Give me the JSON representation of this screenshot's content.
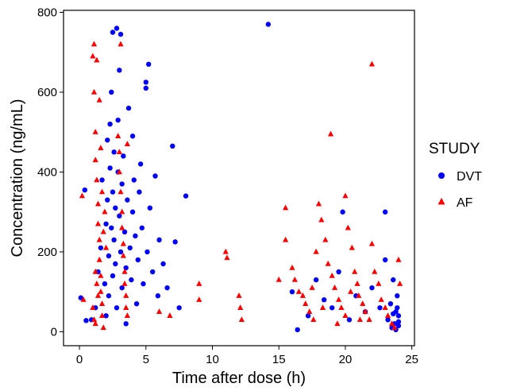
{
  "chart_data": {
    "type": "scatter",
    "xlabel": "Time after dose (h)",
    "ylabel": "Concentration (ng/mL)",
    "xlim": [
      -1.2,
      25.2
    ],
    "ylim": [
      -35,
      805
    ],
    "xticks": [
      0,
      5,
      10,
      15,
      20,
      25
    ],
    "yticks": [
      0,
      200,
      400,
      600,
      800
    ],
    "grid": false,
    "legend": {
      "title": "STUDY",
      "position": "right"
    },
    "series": [
      {
        "name": "DVT",
        "marker": "circle",
        "color": "#0000ff",
        "points": [
          [
            0.1,
            85
          ],
          [
            0.4,
            355
          ],
          [
            0.5,
            28
          ],
          [
            0.9,
            30
          ],
          [
            1.2,
            60
          ],
          [
            1.4,
            150
          ],
          [
            1.6,
            210
          ],
          [
            1.7,
            380
          ],
          [
            1.9,
            120
          ],
          [
            2.0,
            40
          ],
          [
            2.0,
            270
          ],
          [
            2.1,
            330
          ],
          [
            2.1,
            480
          ],
          [
            2.2,
            190
          ],
          [
            2.2,
            90
          ],
          [
            2.3,
            520
          ],
          [
            2.3,
            410
          ],
          [
            2.4,
            260
          ],
          [
            2.4,
            600
          ],
          [
            2.5,
            140
          ],
          [
            2.5,
            350
          ],
          [
            2.5,
            750
          ],
          [
            2.6,
            230
          ],
          [
            2.6,
            450
          ],
          [
            2.7,
            310
          ],
          [
            2.7,
            170
          ],
          [
            2.8,
            760
          ],
          [
            2.8,
            60
          ],
          [
            2.9,
            400
          ],
          [
            2.9,
            530
          ],
          [
            3.0,
            655
          ],
          [
            3.0,
            290
          ],
          [
            3.1,
            745
          ],
          [
            3.1,
            200
          ],
          [
            3.2,
            110
          ],
          [
            3.2,
            370
          ],
          [
            3.3,
            440
          ],
          [
            3.4,
            250
          ],
          [
            3.5,
            160
          ],
          [
            3.5,
            20
          ],
          [
            3.6,
            330
          ],
          [
            3.7,
            560
          ],
          [
            3.8,
            210
          ],
          [
            3.9,
            130
          ],
          [
            4.0,
            300
          ],
          [
            4.0,
            490
          ],
          [
            4.1,
            380
          ],
          [
            4.2,
            240
          ],
          [
            4.3,
            70
          ],
          [
            4.4,
            180
          ],
          [
            4.5,
            350
          ],
          [
            4.6,
            420
          ],
          [
            4.7,
            260
          ],
          [
            4.8,
            120
          ],
          [
            5.0,
            625
          ],
          [
            5.0,
            610
          ],
          [
            5.1,
            200
          ],
          [
            5.2,
            670
          ],
          [
            5.3,
            310
          ],
          [
            5.5,
            150
          ],
          [
            5.7,
            390
          ],
          [
            5.9,
            90
          ],
          [
            6.0,
            230
          ],
          [
            6.3,
            170
          ],
          [
            6.6,
            110
          ],
          [
            7.0,
            465
          ],
          [
            7.2,
            225
          ],
          [
            7.5,
            60
          ],
          [
            8.0,
            340
          ],
          [
            14.2,
            770
          ],
          [
            16.0,
            100
          ],
          [
            16.4,
            5
          ],
          [
            17.2,
            40
          ],
          [
            17.8,
            130
          ],
          [
            18.4,
            80
          ],
          [
            19.0,
            60
          ],
          [
            19.5,
            150
          ],
          [
            19.8,
            300
          ],
          [
            20.3,
            30
          ],
          [
            20.8,
            90
          ],
          [
            21.5,
            50
          ],
          [
            22.0,
            110
          ],
          [
            22.6,
            60
          ],
          [
            23.0,
            300
          ],
          [
            23.0,
            180
          ],
          [
            23.2,
            30
          ],
          [
            23.4,
            70
          ],
          [
            23.5,
            10
          ],
          [
            23.6,
            130
          ],
          [
            23.7,
            20
          ],
          [
            23.8,
            50
          ],
          [
            23.8,
            5
          ],
          [
            23.9,
            90
          ],
          [
            24.0,
            40
          ],
          [
            24.0,
            15
          ],
          [
            23.6,
            45
          ],
          [
            23.9,
            60
          ],
          [
            24.0,
            25
          ]
        ]
      },
      {
        "name": "AF",
        "marker": "triangle",
        "color": "#ff0000",
        "points": [
          [
            0.2,
            340
          ],
          [
            0.3,
            80
          ],
          [
            1.0,
            690
          ],
          [
            1.1,
            720
          ],
          [
            1.1,
            600
          ],
          [
            1.2,
            500
          ],
          [
            1.2,
            430
          ],
          [
            1.3,
            680
          ],
          [
            1.3,
            380
          ],
          [
            1.4,
            320
          ],
          [
            1.4,
            270
          ],
          [
            1.5,
            230
          ],
          [
            1.5,
            180
          ],
          [
            1.5,
            580
          ],
          [
            1.6,
            140
          ],
          [
            1.6,
            100
          ],
          [
            1.7,
            70
          ],
          [
            1.7,
            40
          ],
          [
            1.8,
            10
          ],
          [
            1.8,
            250
          ],
          [
            1.9,
            300
          ],
          [
            2.0,
            210
          ],
          [
            1.2,
            150
          ],
          [
            1.3,
            120
          ],
          [
            1.4,
            90
          ],
          [
            1.0,
            60
          ],
          [
            1.1,
            30
          ],
          [
            1.2,
            20
          ],
          [
            1.6,
            460
          ],
          [
            1.7,
            350
          ],
          [
            2.9,
            490
          ],
          [
            3.0,
            450
          ],
          [
            3.0,
            400
          ],
          [
            3.1,
            720
          ],
          [
            3.1,
            350
          ],
          [
            3.2,
            300
          ],
          [
            3.2,
            260
          ],
          [
            3.3,
            220
          ],
          [
            3.3,
            190
          ],
          [
            3.4,
            150
          ],
          [
            3.4,
            120
          ],
          [
            3.5,
            90
          ],
          [
            3.5,
            60
          ],
          [
            3.6,
            40
          ],
          [
            3.6,
            470
          ],
          [
            6.0,
            50
          ],
          [
            6.8,
            40
          ],
          [
            9.0,
            120
          ],
          [
            9.0,
            80
          ],
          [
            11.0,
            200
          ],
          [
            11.1,
            185
          ],
          [
            12.0,
            90
          ],
          [
            12.1,
            60
          ],
          [
            12.2,
            30
          ],
          [
            15.0,
            130
          ],
          [
            15.5,
            310
          ],
          [
            15.5,
            230
          ],
          [
            16.0,
            160
          ],
          [
            16.2,
            130
          ],
          [
            16.5,
            100
          ],
          [
            16.8,
            90
          ],
          [
            17.0,
            70
          ],
          [
            17.3,
            50
          ],
          [
            17.5,
            110
          ],
          [
            17.8,
            200
          ],
          [
            18.0,
            320
          ],
          [
            18.2,
            280
          ],
          [
            18.5,
            230
          ],
          [
            18.7,
            170
          ],
          [
            18.9,
            495
          ],
          [
            19.0,
            140
          ],
          [
            19.2,
            110
          ],
          [
            19.5,
            80
          ],
          [
            19.7,
            60
          ],
          [
            20.0,
            340
          ],
          [
            20.0,
            40
          ],
          [
            20.2,
            260
          ],
          [
            20.5,
            210
          ],
          [
            20.7,
            150
          ],
          [
            20.9,
            120
          ],
          [
            21.0,
            90
          ],
          [
            21.3,
            70
          ],
          [
            21.5,
            50
          ],
          [
            21.8,
            30
          ],
          [
            22.0,
            220
          ],
          [
            22.0,
            670
          ],
          [
            22.2,
            150
          ],
          [
            22.5,
            120
          ],
          [
            22.7,
            80
          ],
          [
            23.0,
            60
          ],
          [
            23.2,
            40
          ],
          [
            23.5,
            20
          ],
          [
            23.7,
            10
          ],
          [
            24.0,
            180
          ],
          [
            24.1,
            120
          ],
          [
            17.6,
            30
          ],
          [
            18.3,
            60
          ],
          [
            19.4,
            20
          ],
          [
            20.4,
            100
          ],
          [
            21.1,
            30
          ]
        ]
      }
    ]
  }
}
